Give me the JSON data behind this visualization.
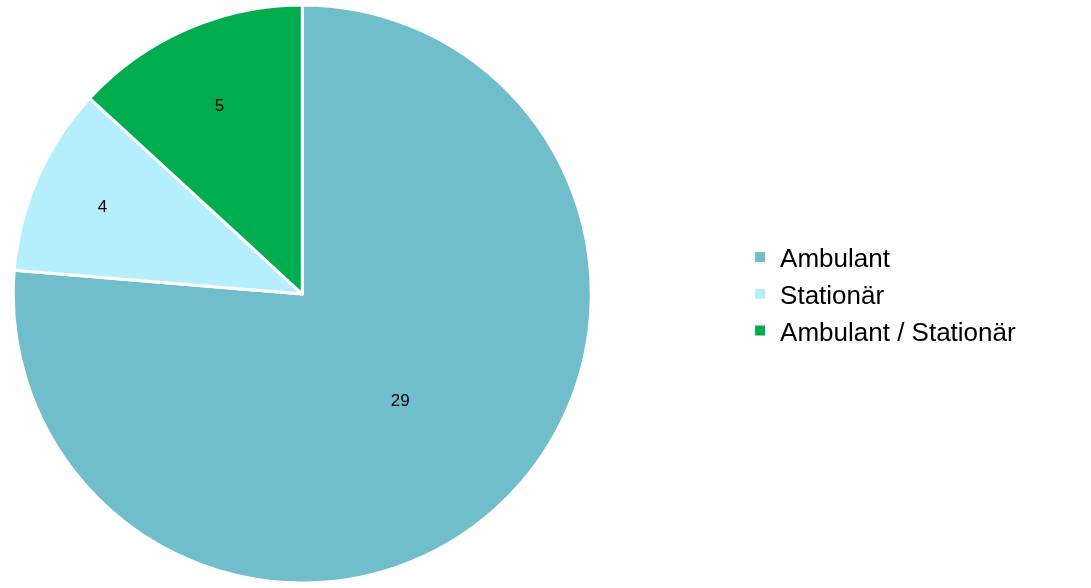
{
  "chart_data": {
    "type": "pie",
    "categories": [
      "Ambulant",
      "Stationär",
      "Ambulant / Stationär"
    ],
    "values": [
      29,
      4,
      5
    ],
    "colors": [
      "#70bdcc",
      "#b5eefc",
      "#00ad4e"
    ],
    "data_labels": true,
    "legend": "right"
  }
}
